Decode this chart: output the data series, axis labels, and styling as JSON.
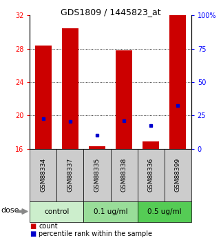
{
  "title": "GDS1809 / 1445823_at",
  "samples": [
    "GSM88334",
    "GSM88337",
    "GSM88335",
    "GSM88338",
    "GSM88336",
    "GSM88399"
  ],
  "bar_top": [
    28.4,
    30.5,
    16.3,
    27.8,
    16.9,
    32.0
  ],
  "bar_bottom": 16.0,
  "blue_y": [
    19.6,
    19.3,
    17.6,
    19.4,
    18.8,
    21.2
  ],
  "ylim": [
    16,
    32
  ],
  "yticks_left": [
    16,
    20,
    24,
    28,
    32
  ],
  "yticks_right_vals": [
    0,
    25,
    50,
    75,
    100
  ],
  "yticks_right_labels": [
    "0",
    "25",
    "50",
    "75",
    "100%"
  ],
  "bar_color": "#cc0000",
  "blue_color": "#0000cc",
  "groups": [
    {
      "label": "control",
      "indices": [
        0,
        1
      ],
      "color": "#cceecc"
    },
    {
      "label": "0.1 ug/ml",
      "indices": [
        2,
        3
      ],
      "color": "#99dd99"
    },
    {
      "label": "0.5 ug/ml",
      "indices": [
        4,
        5
      ],
      "color": "#55cc55"
    }
  ],
  "dose_label": "dose",
  "legend_count_label": "count",
  "legend_pct_label": "percentile rank within the sample",
  "bar_width": 0.6,
  "sample_box_color": "#cccccc",
  "bg_color": "#ffffff"
}
